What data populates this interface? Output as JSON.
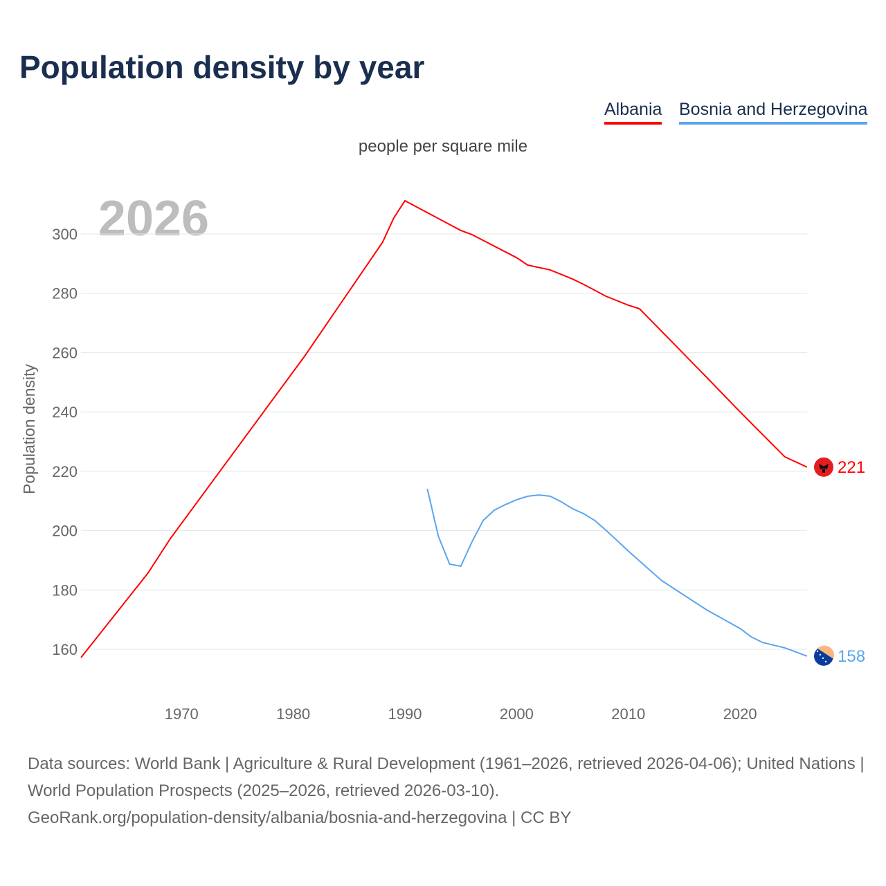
{
  "title": "Population density by year",
  "legend": [
    "Albania",
    "Bosnia and Herzegovina"
  ],
  "footer": {
    "line1": "Data sources: World Bank | Agriculture & Rural Development (1961–2026, retrieved 2026-04-06); United Nations | World Population Prospects (2025–2026, retrieved 2026-03-10).",
    "line2": "GeoRank.org/population-density/albania/bosnia-and-herzegovina | CC BY"
  },
  "chart_data": {
    "type": "line",
    "title": "Population density by year",
    "subtitle": "people per square mile",
    "ylabel": "Population density",
    "xlabel": "",
    "year_watermark": "2026",
    "xlim": [
      1961,
      2026
    ],
    "ylim": [
      150,
      320
    ],
    "xticks": [
      1970,
      1980,
      1990,
      2000,
      2010,
      2020
    ],
    "yticks": [
      160,
      180,
      200,
      220,
      240,
      260,
      280,
      300
    ],
    "grid": true,
    "legend_position": "top-right",
    "series": [
      {
        "name": "Albania",
        "color": "#ff0000",
        "end_label": "221",
        "flag": "albania-flag-icon",
        "x": [
          1961,
          1967,
          1969,
          1981,
          1988,
          1989,
          1990,
          1995,
          1996,
          2000,
          2001,
          2003,
          2005,
          2006,
          2008,
          2010,
          2011,
          2017,
          2020,
          2024,
          2026
        ],
        "y": [
          157.2,
          185.7,
          197.3,
          258.7,
          297.2,
          305.4,
          311.2,
          301.2,
          299.8,
          292,
          289.5,
          287.9,
          284.8,
          283,
          279,
          276,
          274.8,
          251.7,
          240,
          224.9,
          221.4
        ]
      },
      {
        "name": "Bosnia and Herzegovina",
        "color": "#5aa5ee",
        "end_label": "158",
        "flag": "bosnia-flag-icon",
        "x": [
          1992,
          1993,
          1994,
          1995,
          1996,
          1997,
          1998,
          1999,
          2000,
          2001,
          2002,
          2003,
          2004,
          2005,
          2006,
          2007,
          2008,
          2010,
          2012,
          2013,
          2015,
          2017,
          2020,
          2021,
          2022,
          2024,
          2026
        ],
        "y": [
          214.1,
          198,
          188.7,
          188,
          196.2,
          203.4,
          206.9,
          208.8,
          210.4,
          211.6,
          212,
          211.6,
          209.7,
          207.4,
          205.7,
          203.4,
          200.1,
          193.1,
          186.4,
          183.1,
          178.2,
          173.3,
          167,
          164.2,
          162.3,
          160.5,
          157.7
        ]
      }
    ]
  }
}
